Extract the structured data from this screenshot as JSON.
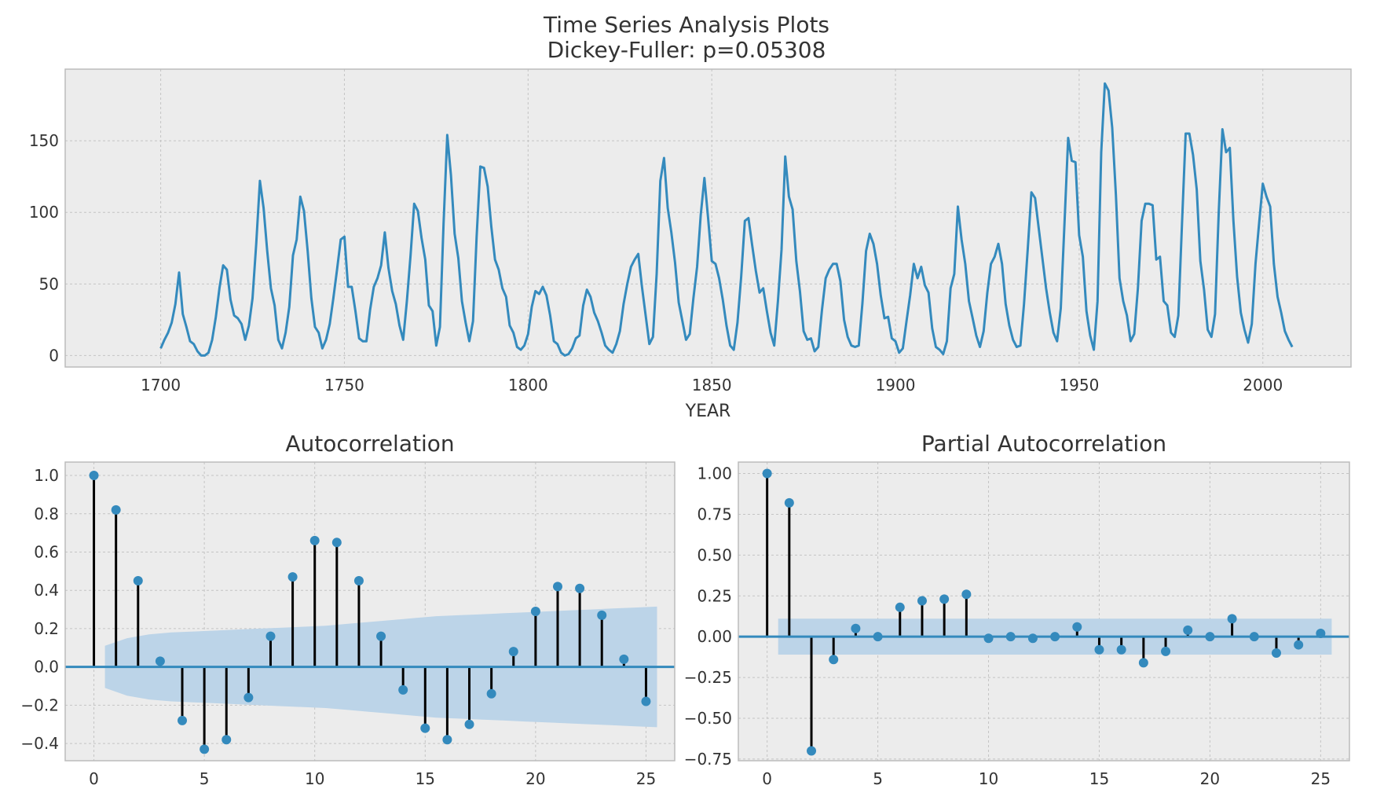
{
  "figure": {
    "title_line1": "Time Series Analysis Plots",
    "title_line2": "Dickey-Fuller: p=0.05308"
  },
  "chart_data": [
    {
      "type": "line",
      "panel": "time-series",
      "title": "",
      "xlabel": "YEAR",
      "ylabel": "",
      "xlim": [
        1674,
        2024
      ],
      "ylim": [
        -8,
        200
      ],
      "grid": true,
      "line_color": "#348abd",
      "x_start": 1700,
      "x_step": 1,
      "xticks": [
        1700,
        1750,
        1800,
        1850,
        1900,
        1950,
        2000
      ],
      "yticks": [
        0,
        50,
        100,
        150
      ],
      "values": [
        5,
        11,
        16,
        23,
        36,
        58,
        29,
        20,
        10,
        8,
        3,
        0,
        0,
        2,
        11,
        27,
        47,
        63,
        60,
        39,
        28,
        26,
        22,
        11,
        21,
        40,
        78,
        122,
        103,
        73,
        47,
        35,
        11,
        5,
        16,
        34,
        70,
        81,
        111,
        101,
        73,
        40,
        20,
        16,
        5,
        11,
        22,
        40,
        60,
        81,
        83,
        48,
        48,
        31,
        12,
        10,
        10,
        32,
        48,
        54,
        63,
        86,
        61,
        45,
        36,
        21,
        11,
        38,
        70,
        106,
        101,
        82,
        67,
        35,
        31,
        7,
        20,
        92,
        154,
        126,
        85,
        68,
        38,
        23,
        10,
        24,
        83,
        132,
        131,
        118,
        90,
        67,
        60,
        47,
        41,
        21,
        16,
        6,
        4,
        7,
        15,
        34,
        45,
        43,
        48,
        42,
        28,
        10,
        8,
        2,
        0,
        1,
        5,
        12,
        14,
        35,
        46,
        41,
        30,
        24,
        16,
        7,
        4,
        2,
        8,
        17,
        36,
        50,
        62,
        67,
        71,
        48,
        28,
        8,
        13,
        57,
        122,
        138,
        103,
        86,
        65,
        37,
        24,
        11,
        15,
        40,
        62,
        98,
        124,
        96,
        66,
        64,
        54,
        39,
        21,
        7,
        4,
        23,
        55,
        94,
        96,
        77,
        59,
        44,
        47,
        31,
        16,
        7,
        38,
        74,
        139,
        111,
        102,
        66,
        45,
        17,
        11,
        12,
        3,
        6,
        32,
        54,
        60,
        64,
        64,
        52,
        25,
        13,
        7,
        6,
        7,
        36,
        73,
        85,
        78,
        64,
        42,
        26,
        27,
        12,
        10,
        2,
        5,
        24,
        42,
        64,
        54,
        62,
        49,
        44,
        19,
        6,
        4,
        1,
        10,
        47,
        57,
        104,
        81,
        64,
        38,
        26,
        14,
        6,
        17,
        44,
        64,
        69,
        78,
        64,
        36,
        21,
        11,
        6,
        7,
        36,
        74,
        114,
        110,
        89,
        68,
        47,
        30,
        16,
        10,
        33,
        92,
        152,
        136,
        135,
        84,
        69,
        31,
        14,
        4,
        38,
        142,
        190,
        185,
        159,
        112,
        54,
        38,
        28,
        10,
        15,
        47,
        94,
        106,
        106,
        105,
        67,
        69,
        38,
        35,
        16,
        13,
        28,
        93,
        155,
        155,
        140,
        116,
        66,
        46,
        18,
        13,
        29,
        100,
        158,
        142,
        145,
        94,
        55,
        30,
        18,
        9,
        22,
        64,
        93,
        120,
        111,
        104,
        64,
        41,
        30,
        17,
        11,
        6
      ]
    },
    {
      "type": "stem",
      "panel": "acf",
      "title": "Autocorrelation",
      "xlabel": "",
      "ylabel": "",
      "xlim": [
        -1.3,
        26.3
      ],
      "ylim": [
        -0.49,
        1.07
      ],
      "grid": true,
      "xticks": [
        0,
        5,
        10,
        15,
        20,
        25
      ],
      "yticks": [
        -0.4,
        -0.2,
        0.0,
        0.2,
        0.4,
        0.6,
        0.8,
        1.0
      ],
      "ytick_labels": [
        "−0.4",
        "−0.2",
        "0.0",
        "0.2",
        "0.4",
        "0.6",
        "0.8",
        "1.0"
      ],
      "lags": [
        0,
        1,
        2,
        3,
        4,
        5,
        6,
        7,
        8,
        9,
        10,
        11,
        12,
        13,
        14,
        15,
        16,
        17,
        18,
        19,
        20,
        21,
        22,
        23,
        24,
        25
      ],
      "values": [
        1.0,
        0.82,
        0.45,
        0.03,
        -0.28,
        -0.43,
        -0.38,
        -0.16,
        0.16,
        0.47,
        0.66,
        0.65,
        0.45,
        0.16,
        -0.12,
        -0.32,
        -0.38,
        -0.3,
        -0.14,
        0.08,
        0.29,
        0.42,
        0.41,
        0.27,
        0.04,
        -0.18
      ],
      "conf_band": [
        0.11,
        0.15,
        0.17,
        0.18,
        0.185,
        0.19,
        0.195,
        0.2,
        0.205,
        0.21,
        0.215,
        0.225,
        0.235,
        0.245,
        0.255,
        0.265,
        0.27,
        0.275,
        0.28,
        0.285,
        0.29,
        0.295,
        0.3,
        0.305,
        0.31,
        0.315
      ],
      "band_color": "#bcd4e8",
      "stem_color": "#000000",
      "marker_color": "#348abd"
    },
    {
      "type": "stem",
      "panel": "pacf",
      "title": "Partial Autocorrelation",
      "xlabel": "",
      "ylabel": "",
      "xlim": [
        -1.3,
        26.3
      ],
      "ylim": [
        -0.76,
        1.07
      ],
      "grid": true,
      "xticks": [
        0,
        5,
        10,
        15,
        20,
        25
      ],
      "yticks": [
        -0.75,
        -0.5,
        -0.25,
        0.0,
        0.25,
        0.5,
        0.75,
        1.0
      ],
      "ytick_labels": [
        "−0.75",
        "−0.50",
        "−0.25",
        "0.00",
        "0.25",
        "0.50",
        "0.75",
        "1.00"
      ],
      "lags": [
        0,
        1,
        2,
        3,
        4,
        5,
        6,
        7,
        8,
        9,
        10,
        11,
        12,
        13,
        14,
        15,
        16,
        17,
        18,
        19,
        20,
        21,
        22,
        23,
        24,
        25
      ],
      "values": [
        1.0,
        0.82,
        -0.7,
        -0.14,
        0.05,
        0.0,
        0.18,
        0.22,
        0.23,
        0.26,
        -0.01,
        0.0,
        -0.01,
        0.0,
        0.06,
        -0.08,
        -0.08,
        -0.16,
        -0.09,
        0.04,
        0.0,
        0.11,
        0.0,
        -0.1,
        -0.05,
        0.02
      ],
      "conf_band": [
        0.11,
        0.11,
        0.11,
        0.11,
        0.11,
        0.11,
        0.11,
        0.11,
        0.11,
        0.11,
        0.11,
        0.11,
        0.11,
        0.11,
        0.11,
        0.11,
        0.11,
        0.11,
        0.11,
        0.11,
        0.11,
        0.11,
        0.11,
        0.11,
        0.11,
        0.11
      ],
      "band_color": "#bcd4e8",
      "stem_color": "#000000",
      "marker_color": "#348abd"
    }
  ]
}
